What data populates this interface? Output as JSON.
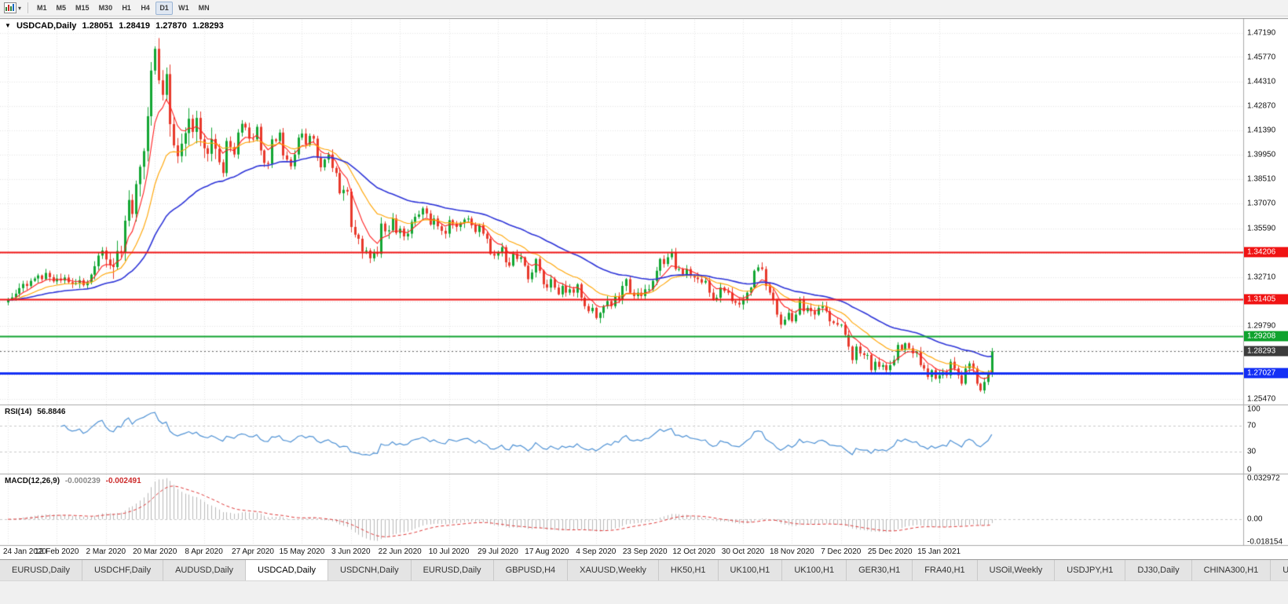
{
  "toolbar": {
    "timeframes": [
      "M1",
      "M5",
      "M15",
      "M30",
      "H1",
      "H4",
      "D1",
      "W1",
      "MN"
    ],
    "active": "D1"
  },
  "chart_header": {
    "symbol": "USDCAD,Daily",
    "open": "1.28051",
    "high": "1.28419",
    "low": "1.27870",
    "close": "1.28293"
  },
  "rsi": {
    "label": "RSI(14)",
    "value": "56.8846",
    "color": "#4f92d5",
    "levels": [
      70,
      30
    ],
    "axis": [
      {
        "text": "100",
        "v": 100
      },
      {
        "text": "70",
        "v": 70
      },
      {
        "text": "30",
        "v": 30
      },
      {
        "text": "0",
        "v": 0
      }
    ]
  },
  "macd": {
    "label": "MACD(12,26,9)",
    "value_main": "-0.000239",
    "value_signal": "-0.002491",
    "hist_color": "#b9b9b9",
    "signal_color": "#e03a3a",
    "axis": [
      {
        "text": "0.032972",
        "v": 0.032972
      },
      {
        "text": "0.00",
        "v": 0
      },
      {
        "text": "-0.018154",
        "v": -0.018154
      }
    ]
  },
  "price_axis": {
    "labels": [
      "1.47190",
      "1.45770",
      "1.44310",
      "1.42870",
      "1.41390",
      "1.39950",
      "1.38510",
      "1.37070",
      "1.35590",
      "1.32710",
      "1.29790",
      "1.25470"
    ],
    "badges": [
      {
        "text": "1.34206",
        "price": 1.34206,
        "bg": "#f01414",
        "name": "resistance-134206"
      },
      {
        "text": "1.31405",
        "price": 1.31405,
        "bg": "#f01414",
        "name": "resistance-131405"
      },
      {
        "text": "1.29208",
        "price": 1.29208,
        "bg": "#0fa32e",
        "name": "level-129208"
      },
      {
        "text": "1.28293",
        "price": 1.28293,
        "bg": "#3c3c3c",
        "name": "current-price"
      },
      {
        "text": "1.27027",
        "price": 1.27027,
        "bg": "#1430f5",
        "name": "support-127027"
      }
    ]
  },
  "date_axis": {
    "labels": [
      "24 Jan 2020",
      "12 Feb 2020",
      "2 Mar 2020",
      "20 Mar 2020",
      "8 Apr 2020",
      "27 Apr 2020",
      "15 May 2020",
      "3 Jun 2020",
      "22 Jun 2020",
      "10 Jul 2020",
      "29 Jul 2020",
      "17 Aug 2020",
      "4 Sep 2020",
      "23 Sep 2020",
      "12 Oct 2020",
      "30 Oct 2020",
      "18 Nov 2020",
      "7 Dec 2020",
      "25 Dec 2020",
      "15 Jan 2021"
    ]
  },
  "tabs": {
    "active_index": 3,
    "items": [
      "EURUSD,Daily",
      "USDCHF,Daily",
      "AUDUSD,Daily",
      "USDCAD,Daily",
      "USDCNH,Daily",
      "EURUSD,Daily",
      "GBPUSD,H4",
      "XAUUSD,Weekly",
      "HK50,H1",
      "UK100,H1",
      "UK100,H1",
      "GER30,H1",
      "FRA40,H1",
      "USOil,Weekly",
      "USDJPY,H1",
      "DJ30,Daily",
      "CHINA300,H1",
      "US"
    ]
  },
  "chart_data": {
    "type": "candlestick",
    "symbol": "USDCAD",
    "timeframe": "Daily",
    "current_price": 1.28293,
    "ohlc_current": {
      "open": 1.28051,
      "high": 1.28419,
      "low": 1.2787,
      "close": 1.28293
    },
    "colors": {
      "up": "#12a633",
      "down": "#e8392b"
    },
    "hlines": [
      {
        "price": 1.34206,
        "color": "#f01414",
        "width": 2
      },
      {
        "price": 1.31405,
        "color": "#f01414",
        "width": 2
      },
      {
        "price": 1.29208,
        "color": "#0fa32e",
        "width": 2
      },
      {
        "price": 1.27027,
        "color": "#1430f5",
        "width": 3
      }
    ],
    "moving_averages": [
      {
        "period": 7,
        "color": "#ff2020",
        "width": 1.1
      },
      {
        "period": 18,
        "color": "#ffa400",
        "width": 1.1
      },
      {
        "period": 45,
        "color": "#2d34d8",
        "width": 1.6
      }
    ],
    "indicators": {
      "rsi": {
        "period": 14,
        "value": 56.8846
      },
      "macd": {
        "fast": 12,
        "slow": 26,
        "signal": 9,
        "value": -0.000239,
        "signal_value": -0.002491
      }
    },
    "x_tick_stride_bars": 13,
    "price_range_shown": [
      1.2547,
      1.4719
    ],
    "closes": [
      1.3135,
      1.315,
      1.3172,
      1.3205,
      1.323,
      1.3218,
      1.3248,
      1.3262,
      1.328,
      1.3258,
      1.3295,
      1.327,
      1.3245,
      1.3262,
      1.325,
      1.3268,
      1.324,
      1.3228,
      1.3235,
      1.3252,
      1.3222,
      1.324,
      1.3285,
      1.3335,
      1.3398,
      1.3428,
      1.3375,
      1.3342,
      1.333,
      1.3425,
      1.3418,
      1.3605,
      1.3728,
      1.3645,
      1.3822,
      1.3925,
      1.4018,
      1.4225,
      1.4496,
      1.4625,
      1.4438,
      1.4352,
      1.4475,
      1.4178,
      1.4052,
      1.3988,
      1.4062,
      1.4125,
      1.421,
      1.4132,
      1.4215,
      1.4088,
      1.4035,
      1.4002,
      1.409,
      1.4032,
      1.3952,
      1.3888,
      1.4078,
      1.4042,
      1.3998,
      1.4128,
      1.418,
      1.4158,
      1.4092,
      1.4088,
      1.4162,
      1.4022,
      1.3948,
      1.3942,
      1.4088,
      1.4078,
      1.4128,
      1.3992,
      1.3968,
      1.3928,
      1.3998,
      1.4098,
      1.4122,
      1.4058,
      1.4108,
      1.4092,
      1.3978,
      1.3922,
      1.3968,
      1.3998,
      1.3918,
      1.3888,
      1.3768,
      1.3788,
      1.3778,
      1.3568,
      1.3522,
      1.3498,
      1.3422,
      1.3428,
      1.3382,
      1.3418,
      1.3408,
      1.3588,
      1.3542,
      1.3548,
      1.3618,
      1.3532,
      1.3558,
      1.3512,
      1.3528,
      1.3598,
      1.3628,
      1.3642,
      1.3678,
      1.3648,
      1.3582,
      1.3618,
      1.3572,
      1.3545,
      1.3528,
      1.3608,
      1.3588,
      1.3568,
      1.3592,
      1.3612,
      1.3618,
      1.3578,
      1.3538,
      1.3578,
      1.3528,
      1.3498,
      1.3408,
      1.3398,
      1.3418,
      1.3448,
      1.3358,
      1.3338,
      1.3408,
      1.3378,
      1.3388,
      1.3338,
      1.3258,
      1.3298,
      1.3378,
      1.3308,
      1.3228,
      1.3208,
      1.3258,
      1.3208,
      1.3168,
      1.3218,
      1.3178,
      1.3198,
      1.3178,
      1.3228,
      1.3148,
      1.3098,
      1.3068,
      1.3088,
      1.3028,
      1.3058,
      1.3098,
      1.3128,
      1.3098,
      1.3158,
      1.3138,
      1.3218,
      1.3258,
      1.3178,
      1.3158,
      1.3178,
      1.3158,
      1.3198,
      1.3198,
      1.3248,
      1.3308,
      1.3378,
      1.3348,
      1.3388,
      1.3418,
      1.3318,
      1.3318,
      1.3288,
      1.3318,
      1.3278,
      1.3268,
      1.3258,
      1.3238,
      1.3248,
      1.3178,
      1.3138,
      1.3148,
      1.3208,
      1.3188,
      1.3178,
      1.3128,
      1.3118,
      1.3108,
      1.3138,
      1.3178,
      1.3208,
      1.3308,
      1.3328,
      1.3318,
      1.3218,
      1.3178,
      1.3138,
      1.3048,
      1.2988,
      1.3018,
      1.3058,
      1.3008,
      1.3048,
      1.3138,
      1.3068,
      1.3088,
      1.3068,
      1.3048,
      1.3088,
      1.3098,
      1.3068,
      1.3008,
      1.2998,
      1.2988,
      1.2988,
      1.2928,
      1.2858,
      1.2778,
      1.2858,
      1.2818,
      1.2808,
      1.2808,
      1.2718,
      1.2768,
      1.2738,
      1.2748,
      1.2718,
      1.2748,
      1.2778,
      1.2868,
      1.2838,
      1.2878,
      1.2848,
      1.2818,
      1.2828,
      1.2748,
      1.2728,
      1.2678,
      1.2718,
      1.2668,
      1.2688,
      1.2708,
      1.2688,
      1.2768,
      1.2728,
      1.2688,
      1.2638,
      1.2728,
      1.2758,
      1.2728,
      1.2638,
      1.2598,
      1.2648,
      1.2698,
      1.28293
    ]
  }
}
